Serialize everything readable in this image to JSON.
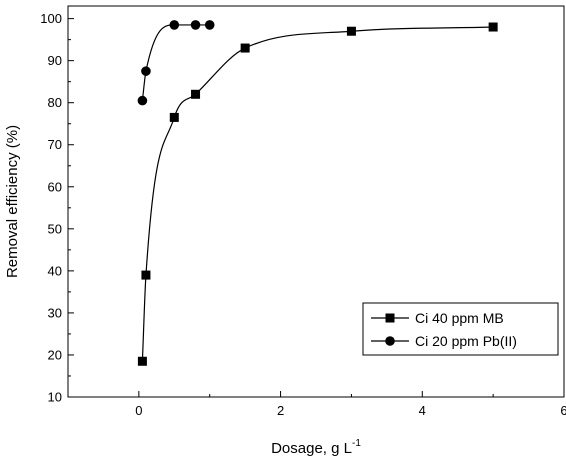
{
  "chart_data": {
    "type": "scatter",
    "title": "",
    "xlabel": "Dosage, g L",
    "xlabel_superscript": "-1",
    "ylabel": "Removal efficiency (%)",
    "xlim": [
      -1,
      6
    ],
    "ylim": [
      10,
      103
    ],
    "xticks": [
      0,
      2,
      4,
      6
    ],
    "yticks": [
      10,
      20,
      30,
      40,
      50,
      60,
      70,
      80,
      90,
      100
    ],
    "grid": false,
    "legend_position": "bottom-right",
    "series": [
      {
        "name": "Ci 40 ppm MB",
        "marker": "square",
        "color": "#000000",
        "x": [
          0.05,
          0.1,
          0.5,
          0.8,
          1.5,
          3.0,
          5.0
        ],
        "y": [
          18.5,
          39,
          76.5,
          82,
          93,
          97,
          98
        ],
        "fit_curve": true
      },
      {
        "name": "Ci 20 ppm Pb(II)",
        "marker": "circle",
        "color": "#000000",
        "x": [
          0.05,
          0.1,
          0.5,
          0.8,
          1.0
        ],
        "y": [
          80.5,
          87.5,
          98.5,
          98.5,
          98.5
        ],
        "fit_curve": true
      }
    ]
  }
}
